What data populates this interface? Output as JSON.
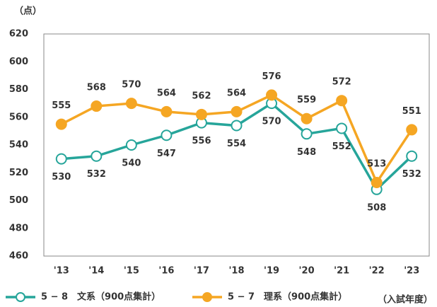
{
  "chart_data": {
    "type": "line",
    "y_label": "（点）",
    "x_label": "（入試年度）",
    "categories": [
      "'13",
      "'14",
      "'15",
      "'16",
      "'17",
      "'18",
      "'19",
      "'20",
      "'21",
      "'22",
      "'23"
    ],
    "series": [
      {
        "name": "5 − 8　文系（900点集計）",
        "color": "#26a59a",
        "marker": "hollow",
        "label_position": "below",
        "values": [
          530,
          532,
          540,
          547,
          556,
          554,
          570,
          548,
          552,
          508,
          532
        ]
      },
      {
        "name": "5 − 7　理系（900点集計）",
        "color": "#f5a623",
        "marker": "filled",
        "label_position": "above",
        "values": [
          555,
          568,
          570,
          564,
          562,
          564,
          576,
          559,
          572,
          513,
          551
        ]
      }
    ],
    "ylim": [
      460,
      620
    ],
    "yticks": [
      460,
      480,
      500,
      520,
      540,
      560,
      580,
      600,
      620
    ],
    "grid": false
  }
}
